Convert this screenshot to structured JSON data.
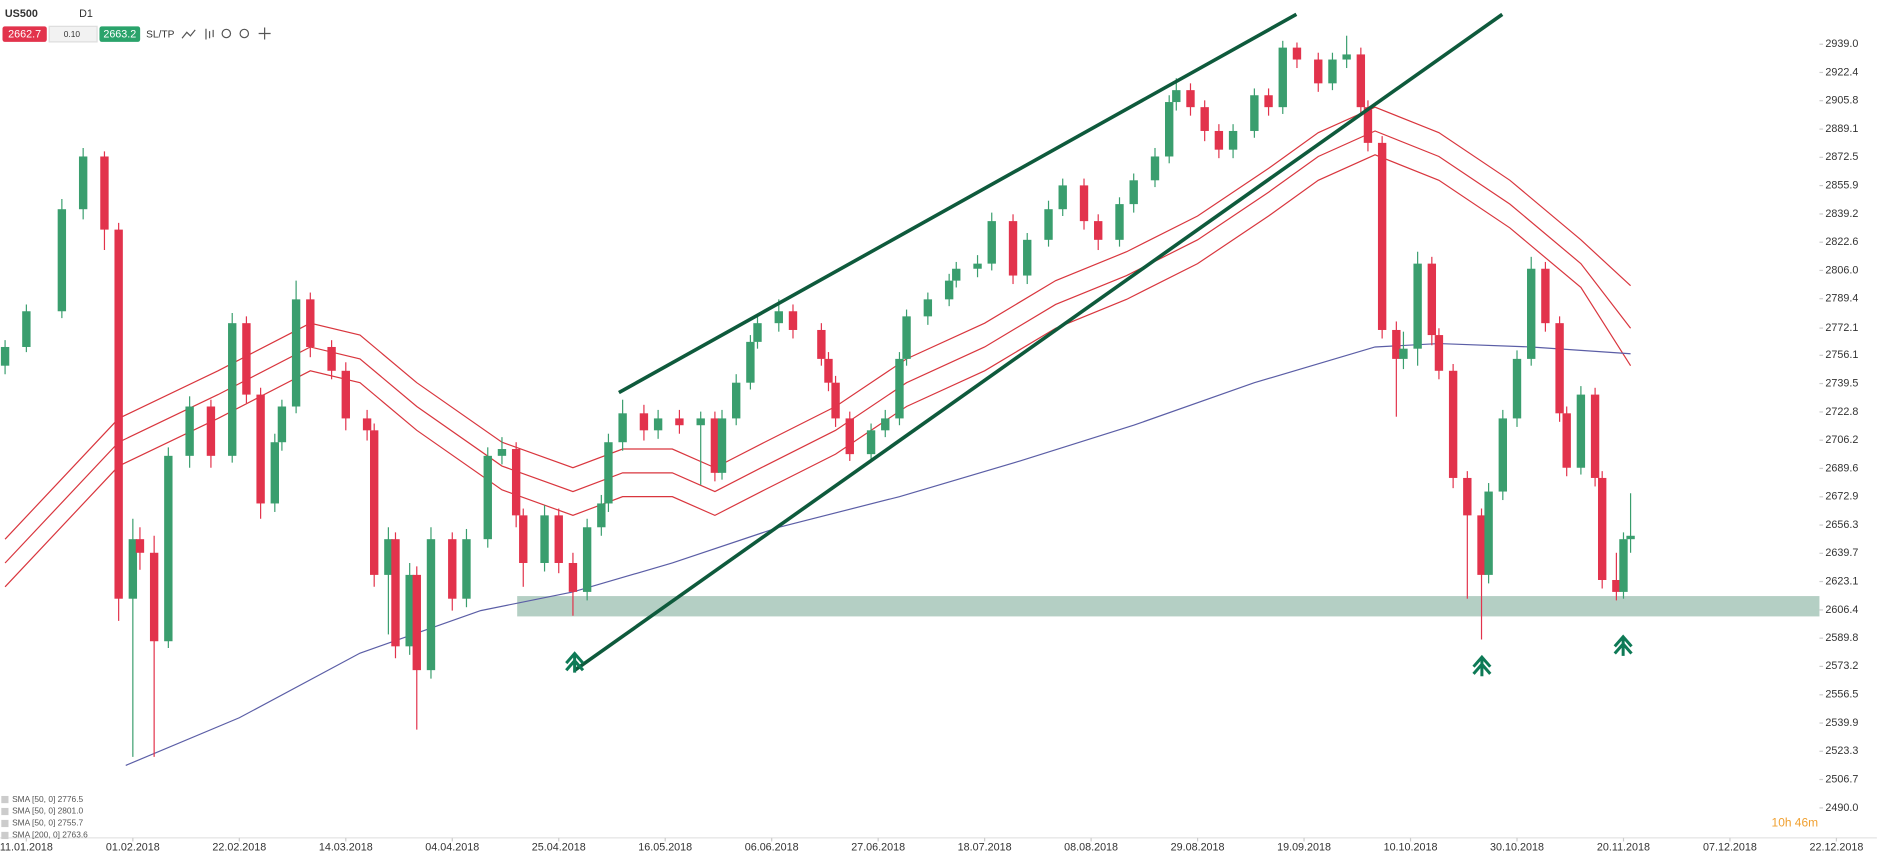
{
  "header": {
    "symbol": "US500",
    "timeframe": "D1",
    "sell": "2662.7",
    "spread": "0.10",
    "buy": "2663.2",
    "sltp": "SL/TP"
  },
  "timer": "10h 46m",
  "chart_data": {
    "type": "candlestick",
    "up_color": "#3a9e6e",
    "down_color": "#e2334c",
    "x": [
      -3,
      0,
      5,
      8,
      11,
      13,
      15,
      16,
      18,
      20,
      23,
      26,
      29,
      31,
      33,
      35,
      36,
      38,
      40,
      43,
      45,
      48,
      49,
      51,
      52,
      54,
      55,
      57,
      60,
      62,
      65,
      67,
      69,
      70,
      73,
      75,
      77,
      79,
      81,
      82,
      84,
      87,
      89,
      92,
      95,
      97,
      98,
      100,
      102,
      103,
      106,
      108,
      112,
      113,
      114,
      116,
      119,
      121,
      123,
      124,
      127,
      130,
      131,
      134,
      136,
      139,
      141,
      144,
      146,
      149,
      151,
      154,
      156,
      159,
      161,
      162,
      164,
      166,
      168,
      170,
      173,
      175,
      177,
      179,
      182,
      184,
      186,
      188,
      189,
      191,
      193,
      194,
      196,
      198,
      199,
      201,
      203,
      205,
      206,
      208,
      210,
      212,
      214,
      216,
      217,
      219,
      221,
      222,
      224,
      225,
      226
    ],
    "ohlc": [
      [
        2750,
        2765,
        2745,
        2761
      ],
      [
        2761,
        2786,
        2758,
        2782
      ],
      [
        2782,
        2848,
        2778,
        2842
      ],
      [
        2842,
        2878,
        2836,
        2873
      ],
      [
        2873,
        2876,
        2818,
        2830
      ],
      [
        2830,
        2834,
        2600,
        2613
      ],
      [
        2613,
        2660,
        2520,
        2648
      ],
      [
        2648,
        2655,
        2630,
        2640
      ],
      [
        2640,
        2650,
        2520,
        2588
      ],
      [
        2588,
        2702,
        2584,
        2697
      ],
      [
        2697,
        2732,
        2690,
        2726
      ],
      [
        2726,
        2730,
        2690,
        2697
      ],
      [
        2697,
        2781,
        2693,
        2775
      ],
      [
        2775,
        2779,
        2728,
        2733
      ],
      [
        2733,
        2737,
        2660,
        2669
      ],
      [
        2669,
        2710,
        2664,
        2705
      ],
      [
        2705,
        2730,
        2700,
        2726
      ],
      [
        2726,
        2800,
        2722,
        2789
      ],
      [
        2789,
        2793,
        2755,
        2761
      ],
      [
        2761,
        2765,
        2742,
        2747
      ],
      [
        2747,
        2752,
        2712,
        2719
      ],
      [
        2719,
        2724,
        2706,
        2712
      ],
      [
        2712,
        2716,
        2620,
        2627
      ],
      [
        2627,
        2655,
        2592,
        2648
      ],
      [
        2648,
        2652,
        2578,
        2585
      ],
      [
        2585,
        2634,
        2580,
        2627
      ],
      [
        2627,
        2632,
        2536,
        2571
      ],
      [
        2571,
        2655,
        2566,
        2648
      ],
      [
        2648,
        2652,
        2606,
        2613
      ],
      [
        2613,
        2654,
        2608,
        2648
      ],
      [
        2648,
        2702,
        2643,
        2697
      ],
      [
        2697,
        2708,
        2692,
        2701
      ],
      [
        2701,
        2705,
        2655,
        2662
      ],
      [
        2662,
        2666,
        2620,
        2634
      ],
      [
        2634,
        2668,
        2629,
        2662
      ],
      [
        2662,
        2666,
        2628,
        2634
      ],
      [
        2634,
        2640,
        2603,
        2617
      ],
      [
        2617,
        2660,
        2612,
        2655
      ],
      [
        2655,
        2674,
        2650,
        2669
      ],
      [
        2669,
        2710,
        2664,
        2705
      ],
      [
        2705,
        2730,
        2700,
        2722
      ],
      [
        2722,
        2727,
        2706,
        2712
      ],
      [
        2712,
        2724,
        2707,
        2719
      ],
      [
        2719,
        2724,
        2710,
        2715
      ],
      [
        2715,
        2723,
        2680,
        2719
      ],
      [
        2719,
        2723,
        2682,
        2687
      ],
      [
        2687,
        2724,
        2683,
        2719
      ],
      [
        2719,
        2745,
        2715,
        2740
      ],
      [
        2740,
        2768,
        2736,
        2764
      ],
      [
        2764,
        2780,
        2760,
        2775
      ],
      [
        2775,
        2789,
        2770,
        2782
      ],
      [
        2782,
        2786,
        2766,
        2771
      ],
      [
        2771,
        2775,
        2750,
        2754
      ],
      [
        2754,
        2758,
        2735,
        2740
      ],
      [
        2740,
        2744,
        2714,
        2719
      ],
      [
        2719,
        2723,
        2694,
        2698
      ],
      [
        2698,
        2716,
        2694,
        2712
      ],
      [
        2712,
        2724,
        2708,
        2719
      ],
      [
        2719,
        2758,
        2715,
        2754
      ],
      [
        2754,
        2783,
        2750,
        2779
      ],
      [
        2779,
        2793,
        2774,
        2789
      ],
      [
        2789,
        2804,
        2785,
        2800
      ],
      [
        2800,
        2811,
        2796,
        2807
      ],
      [
        2807,
        2815,
        2802,
        2810
      ],
      [
        2810,
        2840,
        2806,
        2835
      ],
      [
        2835,
        2839,
        2798,
        2803
      ],
      [
        2803,
        2828,
        2798,
        2824
      ],
      [
        2824,
        2847,
        2820,
        2842
      ],
      [
        2842,
        2860,
        2838,
        2856
      ],
      [
        2856,
        2860,
        2830,
        2835
      ],
      [
        2835,
        2839,
        2818,
        2824
      ],
      [
        2824,
        2849,
        2820,
        2845
      ],
      [
        2845,
        2863,
        2840,
        2859
      ],
      [
        2859,
        2878,
        2855,
        2873
      ],
      [
        2873,
        2909,
        2869,
        2905
      ],
      [
        2905,
        2919,
        2900,
        2912
      ],
      [
        2912,
        2916,
        2897,
        2902
      ],
      [
        2902,
        2906,
        2882,
        2888
      ],
      [
        2888,
        2892,
        2872,
        2877
      ],
      [
        2877,
        2892,
        2872,
        2888
      ],
      [
        2888,
        2913,
        2884,
        2909
      ],
      [
        2909,
        2913,
        2897,
        2902
      ],
      [
        2902,
        2941,
        2898,
        2937
      ],
      [
        2937,
        2940,
        2925,
        2930
      ],
      [
        2930,
        2934,
        2911,
        2916
      ],
      [
        2916,
        2934,
        2912,
        2930
      ],
      [
        2930,
        2944,
        2925,
        2933
      ],
      [
        2933,
        2937,
        2897,
        2902
      ],
      [
        2902,
        2906,
        2876,
        2881
      ],
      [
        2881,
        2885,
        2766,
        2771
      ],
      [
        2771,
        2776,
        2720,
        2754
      ],
      [
        2754,
        2770,
        2748,
        2760
      ],
      [
        2760,
        2817,
        2750,
        2810
      ],
      [
        2810,
        2814,
        2762,
        2768
      ],
      [
        2768,
        2772,
        2742,
        2747
      ],
      [
        2747,
        2751,
        2678,
        2684
      ],
      [
        2684,
        2688,
        2613,
        2662
      ],
      [
        2662,
        2666,
        2589,
        2627
      ],
      [
        2627,
        2681,
        2622,
        2676
      ],
      [
        2676,
        2724,
        2671,
        2719
      ],
      [
        2719,
        2759,
        2714,
        2754
      ],
      [
        2754,
        2814,
        2750,
        2807
      ],
      [
        2807,
        2811,
        2770,
        2775
      ],
      [
        2775,
        2779,
        2717,
        2722
      ],
      [
        2722,
        2726,
        2685,
        2690
      ],
      [
        2690,
        2738,
        2686,
        2733
      ],
      [
        2733,
        2737,
        2679,
        2684
      ],
      [
        2684,
        2688,
        2619,
        2624
      ],
      [
        2624,
        2640,
        2612,
        2617
      ],
      [
        2617,
        2652,
        2613,
        2648
      ],
      [
        2648,
        2675,
        2640,
        2650
      ]
    ],
    "series": [
      {
        "name": "SMA [50, 0] 2776.5",
        "color": "#d9363e",
        "x": [
          -3,
          13,
          27,
          40,
          47,
          55,
          67,
          77,
          84,
          91,
          97,
          104,
          114,
          124,
          135,
          145,
          155,
          165,
          175,
          182,
          190,
          199,
          209,
          219,
          226
        ],
        "values": [
          2634,
          2705,
          2733,
          2761,
          2754,
          2726,
          2691,
          2676,
          2687,
          2687,
          2676,
          2691,
          2712,
          2740,
          2761,
          2786,
          2803,
          2824,
          2852,
          2873,
          2888,
          2873,
          2845,
          2810,
          2772
        ]
      },
      {
        "name": "SMA [50, 0] 2801.0",
        "color": "#d9363e",
        "x": [
          -3,
          13,
          27,
          40,
          47,
          55,
          67,
          77,
          84,
          91,
          97,
          104,
          114,
          124,
          135,
          145,
          155,
          165,
          175,
          182,
          190,
          199,
          209,
          219,
          226
        ],
        "values": [
          2648,
          2719,
          2747,
          2775,
          2768,
          2740,
          2705,
          2690,
          2701,
          2701,
          2690,
          2705,
          2726,
          2754,
          2775,
          2800,
          2817,
          2838,
          2866,
          2887,
          2902,
          2887,
          2859,
          2824,
          2797
        ]
      },
      {
        "name": "SMA [50, 0] 2755.7",
        "color": "#d9363e",
        "x": [
          -3,
          13,
          27,
          40,
          47,
          55,
          67,
          77,
          84,
          91,
          97,
          104,
          114,
          124,
          135,
          145,
          155,
          165,
          175,
          182,
          190,
          199,
          209,
          219,
          226
        ],
        "values": [
          2620,
          2691,
          2719,
          2747,
          2740,
          2712,
          2677,
          2662,
          2673,
          2673,
          2662,
          2677,
          2698,
          2726,
          2747,
          2772,
          2789,
          2810,
          2838,
          2859,
          2874,
          2859,
          2831,
          2796,
          2750
        ]
      },
      {
        "name": "SMA [200, 0] 2763.6",
        "color": "#5b5ea6",
        "x": [
          14,
          30,
          47,
          64,
          77,
          91,
          106,
          123,
          140,
          156,
          173,
          190,
          199,
          212,
          226
        ],
        "values": [
          2515,
          2543,
          2581,
          2606,
          2617,
          2634,
          2655,
          2673,
          2694,
          2715,
          2740,
          2761,
          2763,
          2761,
          2757
        ]
      }
    ],
    "xlim": [
      -3.7,
      260.7
    ],
    "ylim": [
      2472.4,
      2965
    ],
    "xticks": [
      {
        "value": 0,
        "label": "11.01.2018"
      },
      {
        "value": 15,
        "label": "01.02.2018"
      },
      {
        "value": 30,
        "label": "22.02.2018"
      },
      {
        "value": 45,
        "label": "14.03.2018"
      },
      {
        "value": 60,
        "label": "04.04.2018"
      },
      {
        "value": 75,
        "label": "25.04.2018"
      },
      {
        "value": 90,
        "label": "16.05.2018"
      },
      {
        "value": 105,
        "label": "06.06.2018"
      },
      {
        "value": 120,
        "label": "27.06.2018"
      },
      {
        "value": 135,
        "label": "18.07.2018"
      },
      {
        "value": 150,
        "label": "08.08.2018"
      },
      {
        "value": 165,
        "label": "29.08.2018"
      },
      {
        "value": 180,
        "label": "19.09.2018"
      },
      {
        "value": 195,
        "label": "10.10.2018"
      },
      {
        "value": 210,
        "label": "30.10.2018"
      },
      {
        "value": 225,
        "label": "20.11.2018"
      },
      {
        "value": 240,
        "label": "07.12.2018"
      },
      {
        "value": 255,
        "label": "22.12.2018"
      }
    ],
    "yticks": [
      {
        "value": 2939,
        "label": "2939.0"
      },
      2922.4,
      2905.8,
      2889.1,
      2872.5,
      2855.9,
      2839.2,
      2822.6,
      {
        "value": 2806,
        "label": "2806.0"
      },
      2789.4,
      2772.1,
      2756.1,
      2739.5,
      2722.8,
      2706.2,
      2689.6,
      2672.9,
      2656.3,
      2639.7,
      2623.1,
      2606.4,
      2589.8,
      2573.2,
      2556.5,
      2539.9,
      2523.3,
      2506.7,
      {
        "value": 2490,
        "label": "2490.0"
      }
    ]
  }
}
